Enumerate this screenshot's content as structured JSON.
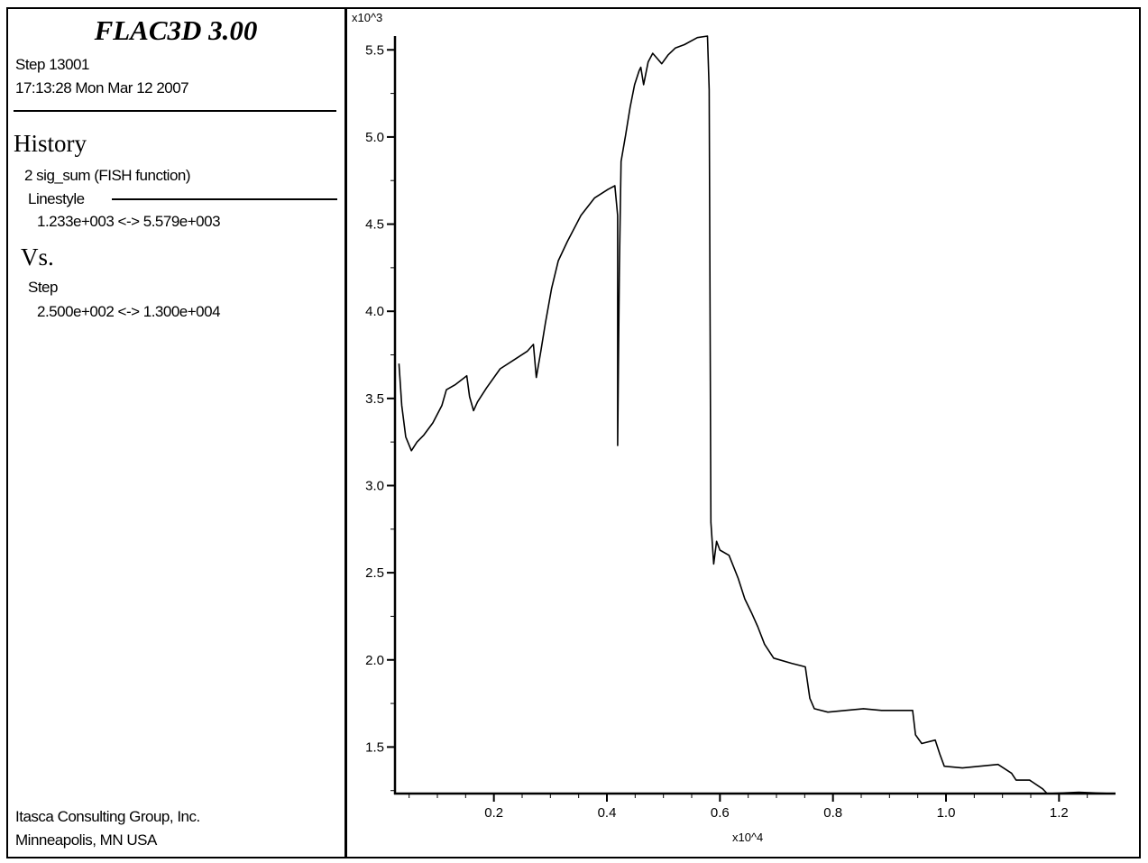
{
  "panel": {
    "title": "FLAC3D 3.00",
    "step": "Step 13001",
    "timestamp": "17:13:28 Mon Mar 12 2007",
    "history_heading": "History",
    "history_item": "2 sig_sum (FISH function)",
    "linestyle_label": "Linestyle",
    "y_range": "1.233e+003 <->  5.579e+003",
    "vs_heading": "Vs.",
    "x_variable": "Step",
    "x_range": "2.500e+002 <->  1.300e+004",
    "company": "Itasca Consulting Group, Inc.",
    "location": "Minneapolis, MN  USA"
  },
  "chart_data": {
    "type": "line",
    "xlabel": "x10^4",
    "ylabel": "x10^3",
    "xlim": [
      0.025,
      1.3
    ],
    "ylim": [
      1.233,
      5.579
    ],
    "x_ticks": [
      "0.2",
      "0.4",
      "0.6",
      "0.8",
      "1.0",
      "1.2"
    ],
    "y_ticks": [
      "1.5",
      "2.0",
      "2.5",
      "3.0",
      "3.5",
      "4.0",
      "4.5",
      "5.0",
      "5.5"
    ],
    "grid": false,
    "line_color": "#000000",
    "series": [
      {
        "x": [
          0.032,
          0.037,
          0.044,
          0.054,
          0.064,
          0.076,
          0.092,
          0.108,
          0.116,
          0.132,
          0.152,
          0.157,
          0.164,
          0.171,
          0.187,
          0.211,
          0.235,
          0.259,
          0.27,
          0.275,
          0.283,
          0.291,
          0.302,
          0.314,
          0.33,
          0.354,
          0.378,
          0.402,
          0.414,
          0.419,
          0.419,
          0.422,
          0.425,
          0.433,
          0.441,
          0.449,
          0.457,
          0.46,
          0.465,
          0.473,
          0.481,
          0.489,
          0.497,
          0.508,
          0.521,
          0.537,
          0.56,
          0.578,
          0.581,
          0.584,
          0.589,
          0.594,
          0.6,
          0.616,
          0.632,
          0.644,
          0.656,
          0.667,
          0.679,
          0.695,
          0.727,
          0.751,
          0.759,
          0.767,
          0.791,
          0.822,
          0.854,
          0.886,
          0.941,
          0.946,
          0.957,
          0.981,
          0.989,
          0.997,
          1.029,
          1.092,
          1.116,
          1.124,
          1.148,
          1.171,
          1.179,
          1.235,
          1.294
        ],
        "y": [
          3.7,
          3.46,
          3.28,
          3.2,
          3.25,
          3.29,
          3.36,
          3.46,
          3.55,
          3.58,
          3.63,
          3.51,
          3.43,
          3.48,
          3.56,
          3.67,
          3.72,
          3.77,
          3.81,
          3.62,
          3.77,
          3.93,
          4.13,
          4.29,
          4.4,
          4.55,
          4.65,
          4.7,
          4.72,
          4.55,
          3.23,
          4.24,
          4.86,
          5.01,
          5.17,
          5.3,
          5.38,
          5.4,
          5.3,
          5.43,
          5.48,
          5.45,
          5.42,
          5.47,
          5.51,
          5.53,
          5.57,
          5.579,
          5.27,
          2.79,
          2.55,
          2.68,
          2.63,
          2.6,
          2.47,
          2.35,
          2.27,
          2.19,
          2.09,
          2.01,
          1.98,
          1.96,
          1.78,
          1.72,
          1.7,
          1.71,
          1.72,
          1.71,
          1.71,
          1.57,
          1.52,
          1.54,
          1.46,
          1.39,
          1.38,
          1.4,
          1.35,
          1.31,
          1.31,
          1.26,
          1.233,
          1.24,
          1.233
        ]
      }
    ]
  }
}
